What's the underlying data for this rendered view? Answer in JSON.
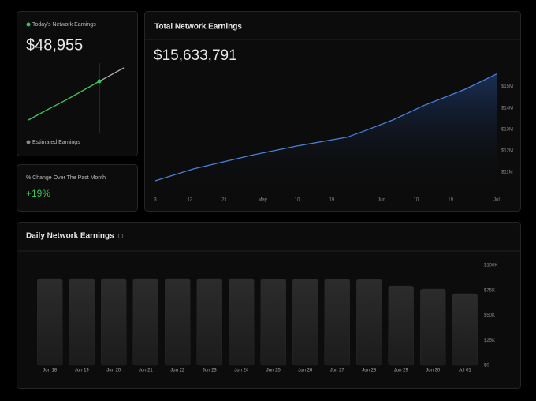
{
  "today": {
    "label": "Today's Network Earnings",
    "value": "$48,955",
    "legend": "Estimated Earnings"
  },
  "change": {
    "label": "% Change Over The Past Month",
    "value": "+19%"
  },
  "total": {
    "title": "Total Network Earnings",
    "value": "$15,633,791",
    "chart": {
      "type": "line",
      "color": "#4a7fd4",
      "x": [
        0,
        10,
        25,
        37,
        50,
        54,
        62,
        70,
        81,
        89
      ],
      "values": [
        10.59,
        11.15,
        11.78,
        12.22,
        12.63,
        12.89,
        13.44,
        14.11,
        14.89,
        15.59
      ],
      "xlim": [
        0,
        89
      ],
      "ylim": [
        10,
        15.8
      ],
      "xticks": [
        {
          "value": 0,
          "label": "3"
        },
        {
          "value": 9,
          "label": "12"
        },
        {
          "value": 18,
          "label": "21"
        },
        {
          "value": 28,
          "label": "May"
        },
        {
          "value": 37,
          "label": "10"
        },
        {
          "value": 46,
          "label": "19"
        },
        {
          "value": 59,
          "label": "Jun"
        },
        {
          "value": 68,
          "label": "10"
        },
        {
          "value": 77,
          "label": "19"
        },
        {
          "value": 89,
          "label": "Jul"
        }
      ],
      "yticks": [
        {
          "value": 11,
          "label": "$11M"
        },
        {
          "value": 12,
          "label": "$12M"
        },
        {
          "value": 13,
          "label": "$13M"
        },
        {
          "value": 14,
          "label": "$14M"
        },
        {
          "value": 15,
          "label": "$15M"
        }
      ]
    }
  },
  "daily": {
    "title": "Daily Network Earnings",
    "chart": {
      "type": "bar",
      "color": "#262626",
      "categories": [
        "Jun 18",
        "Jun 19",
        "Jun 20",
        "Jun 21",
        "Jun 22",
        "Jun 23",
        "Jun 24",
        "Jun 25",
        "Jun 26",
        "Jun 27",
        "Jun 28",
        "Jun 29",
        "Jun 30",
        "Jul 01"
      ],
      "values": [
        86600,
        86600,
        86600,
        86600,
        86600,
        86600,
        86600,
        86400,
        86400,
        86400,
        86000,
        79500,
        76400,
        71700
      ],
      "ylim": [
        0,
        100000
      ],
      "yticks": [
        {
          "value": 0,
          "label": "$0"
        },
        {
          "value": 25000,
          "label": "$25K"
        },
        {
          "value": 50000,
          "label": "$50K"
        },
        {
          "value": 75000,
          "label": "$75K"
        },
        {
          "value": 100000,
          "label": "$100K"
        }
      ]
    }
  }
}
